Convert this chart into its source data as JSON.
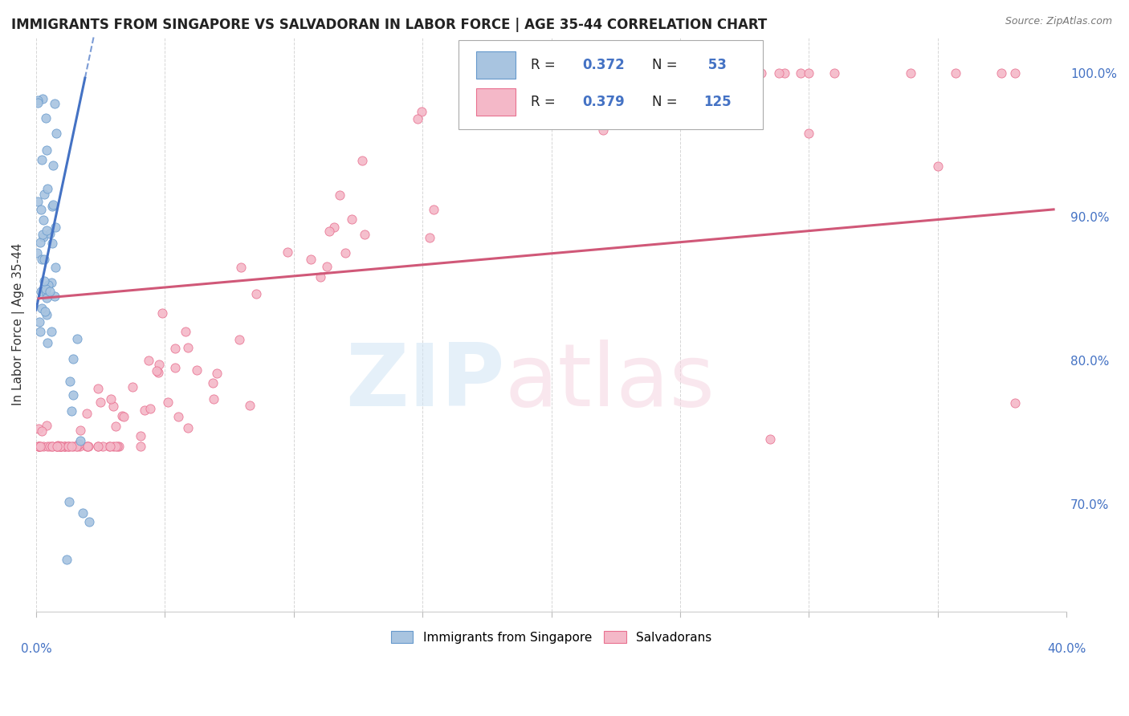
{
  "title": "IMMIGRANTS FROM SINGAPORE VS SALVADORAN IN LABOR FORCE | AGE 35-44 CORRELATION CHART",
  "source": "Source: ZipAtlas.com",
  "ylabel": "In Labor Force | Age 35-44",
  "xlim": [
    0.0,
    0.4
  ],
  "ylim": [
    0.625,
    1.025
  ],
  "right_yticks": [
    1.0,
    0.9,
    0.8,
    0.7
  ],
  "right_yticklabels": [
    "100.0%",
    "90.0%",
    "80.0%",
    "70.0%"
  ],
  "singapore_color": "#a8c4e0",
  "singapore_edge": "#6699cc",
  "singapore_line": "#4472c4",
  "salvadoran_color": "#f4b8c8",
  "salvadoran_edge": "#e87090",
  "salvadoran_line": "#d05878",
  "title_fontsize": 12,
  "axis_label_fontsize": 11,
  "legend_fontsize": 12
}
